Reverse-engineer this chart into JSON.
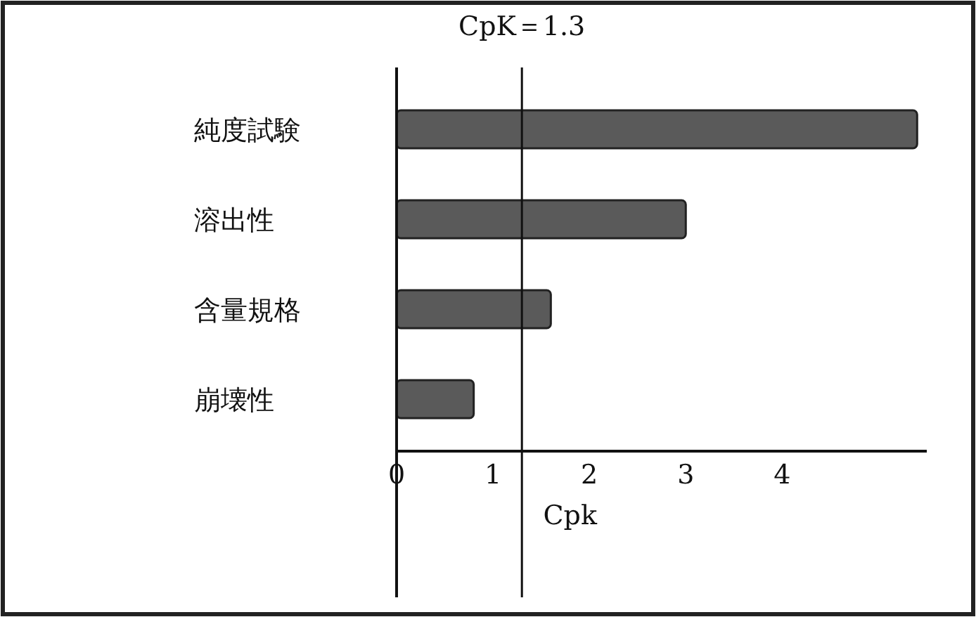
{
  "chart_data": {
    "type": "bar",
    "orientation": "horizontal",
    "categories": [
      "純度試験",
      "溶出性",
      "含量規格",
      "崩壊性"
    ],
    "values": [
      5.4,
      3.0,
      1.6,
      0.8
    ],
    "color": "#5a5a5a",
    "xlabel": "Cpk",
    "xlim": [
      0,
      5.5
    ],
    "xticks": [
      0,
      1,
      2,
      3,
      4
    ],
    "ref_lines": [
      {
        "axis": "x",
        "value": 1.3,
        "label": "CpK＝1.3"
      }
    ],
    "grid": false
  }
}
